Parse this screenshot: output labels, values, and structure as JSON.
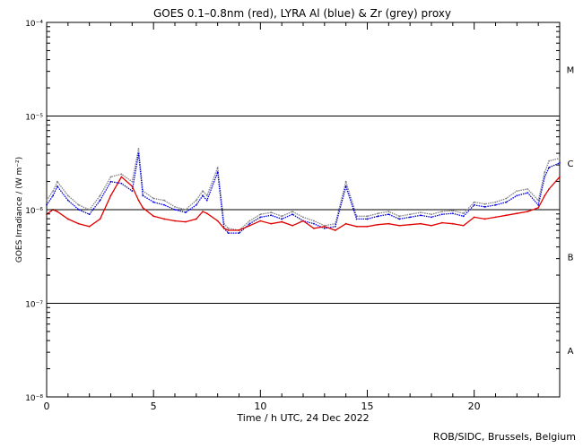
{
  "chart_data": {
    "type": "line",
    "title": "GOES 0.1–0.8nm (red), LYRA Al (blue) & Zr (grey) proxy",
    "xlabel": "Time / h UTC, 24 Dec 2022",
    "ylabel": "GOES Irradiance / (W m⁻²)",
    "xlim": [
      0,
      24
    ],
    "ylim_log10": [
      -8,
      -4
    ],
    "x_ticks": [
      0,
      5,
      10,
      15,
      20
    ],
    "x_tick_labels": [
      "0",
      "5",
      "10",
      "15",
      "20"
    ],
    "y_ticks_log10": [
      -8,
      -7,
      -6,
      -5,
      -4
    ],
    "y_tick_labels": [
      "10⁻⁸",
      "10⁻⁷",
      "10⁻⁶",
      "10⁻⁵",
      "10⁻⁴"
    ],
    "flare_class_lines_log10": [
      -7,
      -6,
      -5
    ],
    "flare_classes": [
      {
        "label": "A",
        "log10": -7.5
      },
      {
        "label": "B",
        "log10": -6.5
      },
      {
        "label": "C",
        "log10": -5.5
      },
      {
        "label": "M",
        "log10": -4.5
      }
    ],
    "colors": {
      "goes": "#e00000",
      "lyra_al": "#0000e0",
      "lyra_zr": "#808080"
    },
    "series": [
      {
        "name": "GOES 0.1-0.8nm",
        "color": "#e00000",
        "x": [
          0,
          0.3,
          0.5,
          1.0,
          1.5,
          2.0,
          2.5,
          3.0,
          3.5,
          4.0,
          4.3,
          4.5,
          5.0,
          5.5,
          6.0,
          6.5,
          7.0,
          7.3,
          7.5,
          8.0,
          8.3,
          8.5,
          9.0,
          9.5,
          10.0,
          10.5,
          11.0,
          11.5,
          12.0,
          12.5,
          13.0,
          13.5,
          14.0,
          14.5,
          15.0,
          15.5,
          16.0,
          16.5,
          17.0,
          17.5,
          18.0,
          18.5,
          19.0,
          19.5,
          20.0,
          20.5,
          21.0,
          21.5,
          22.0,
          22.5,
          23.0,
          23.3,
          23.5,
          24.0
        ],
        "values_log10": [
          -6.05,
          -6.0,
          -6.02,
          -6.1,
          -6.15,
          -6.18,
          -6.1,
          -5.85,
          -5.65,
          -5.75,
          -5.9,
          -5.98,
          -6.07,
          -6.1,
          -6.12,
          -6.13,
          -6.1,
          -6.02,
          -6.04,
          -6.12,
          -6.2,
          -6.22,
          -6.22,
          -6.17,
          -6.12,
          -6.15,
          -6.13,
          -6.17,
          -6.12,
          -6.2,
          -6.18,
          -6.22,
          -6.15,
          -6.18,
          -6.18,
          -6.16,
          -6.15,
          -6.17,
          -6.16,
          -6.15,
          -6.17,
          -6.14,
          -6.15,
          -6.17,
          -6.08,
          -6.1,
          -6.08,
          -6.06,
          -6.04,
          -6.02,
          -5.98,
          -5.85,
          -5.78,
          -5.65
        ]
      },
      {
        "name": "LYRA Al proxy",
        "color": "#0000e0",
        "x": [
          0,
          0.3,
          0.5,
          1.0,
          1.5,
          2.0,
          2.5,
          3.0,
          3.5,
          4.0,
          4.3,
          4.5,
          5.0,
          5.5,
          6.0,
          6.5,
          7.0,
          7.3,
          7.5,
          8.0,
          8.3,
          8.5,
          9.0,
          9.5,
          10.0,
          10.5,
          11.0,
          11.5,
          12.0,
          12.5,
          13.0,
          13.5,
          14.0,
          14.5,
          15.0,
          15.5,
          16.0,
          16.5,
          17.0,
          17.5,
          18.0,
          18.5,
          19.0,
          19.5,
          20.0,
          20.5,
          21.0,
          21.5,
          22.0,
          22.5,
          23.0,
          23.3,
          23.5,
          24.0
        ],
        "values_log10": [
          -5.95,
          -5.85,
          -5.75,
          -5.9,
          -6.0,
          -6.05,
          -5.9,
          -5.7,
          -5.72,
          -5.8,
          -5.4,
          -5.85,
          -5.92,
          -5.95,
          -6.0,
          -6.03,
          -5.95,
          -5.85,
          -5.9,
          -5.6,
          -6.2,
          -6.25,
          -6.25,
          -6.15,
          -6.08,
          -6.06,
          -6.1,
          -6.05,
          -6.12,
          -6.15,
          -6.2,
          -6.18,
          -5.75,
          -6.1,
          -6.1,
          -6.07,
          -6.05,
          -6.1,
          -6.08,
          -6.06,
          -6.08,
          -6.05,
          -6.04,
          -6.07,
          -5.95,
          -5.97,
          -5.95,
          -5.92,
          -5.85,
          -5.82,
          -5.95,
          -5.65,
          -5.55,
          -5.5
        ]
      },
      {
        "name": "LYRA Zr proxy",
        "color": "#808080",
        "x": [
          0,
          0.3,
          0.5,
          1.0,
          1.5,
          2.0,
          2.5,
          3.0,
          3.5,
          4.0,
          4.3,
          4.5,
          5.0,
          5.5,
          6.0,
          6.5,
          7.0,
          7.3,
          7.5,
          8.0,
          8.3,
          8.5,
          9.0,
          9.5,
          10.0,
          10.5,
          11.0,
          11.5,
          12.0,
          12.5,
          13.0,
          13.5,
          14.0,
          14.5,
          15.0,
          15.5,
          16.0,
          16.5,
          17.0,
          17.5,
          18.0,
          18.5,
          19.0,
          19.5,
          20.0,
          20.5,
          21.0,
          21.5,
          22.0,
          22.5,
          23.0,
          23.3,
          23.5,
          24.0
        ],
        "values_log10": [
          -5.9,
          -5.8,
          -5.7,
          -5.85,
          -5.95,
          -6.0,
          -5.85,
          -5.65,
          -5.62,
          -5.7,
          -5.35,
          -5.8,
          -5.88,
          -5.9,
          -5.97,
          -6.0,
          -5.9,
          -5.8,
          -5.85,
          -5.55,
          -6.15,
          -6.2,
          -6.22,
          -6.12,
          -6.05,
          -6.03,
          -6.07,
          -6.02,
          -6.08,
          -6.12,
          -6.17,
          -6.15,
          -5.7,
          -6.07,
          -6.07,
          -6.04,
          -6.02,
          -6.07,
          -6.05,
          -6.03,
          -6.05,
          -6.02,
          -6.01,
          -6.04,
          -5.92,
          -5.94,
          -5.92,
          -5.88,
          -5.8,
          -5.78,
          -5.9,
          -5.6,
          -5.48,
          -5.45
        ]
      }
    ]
  },
  "footer": {
    "credit": "ROB/SIDC, Brussels, Belgium"
  }
}
